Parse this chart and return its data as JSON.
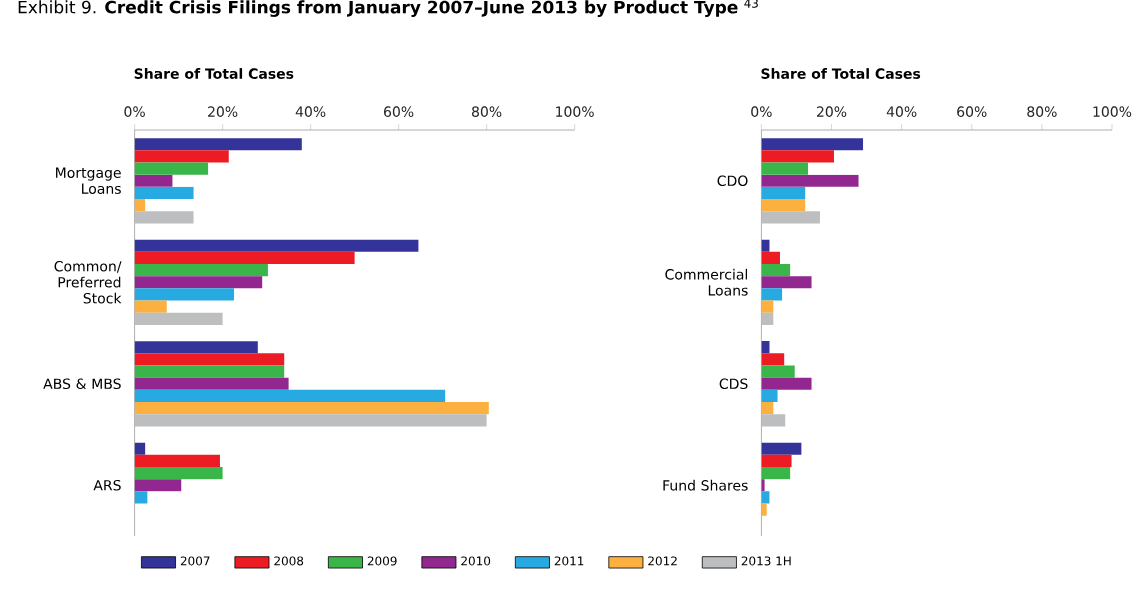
{
  "chart_data": [
    {
      "type": "bar",
      "orientation": "horizontal",
      "title": "Exhibit 9.  **Credit Crisis Filings from January 2007–June 2013 by Product Type** $^{43}$",
      "xlabel": "Share of Total Cases",
      "categories": [
        "Mortgage Loans",
        "Common/ Preferred Stock",
        "ABS & MBS",
        "ARS"
      ],
      "xlim": [
        0,
        100
      ],
      "xticks": [
        {
          "value": 0,
          "label": "0%"
        },
        {
          "value": 20,
          "label": "20%"
        },
        {
          "value": 40,
          "label": "40%"
        },
        {
          "value": 60,
          "label": "60%"
        },
        {
          "value": 80,
          "label": "80%"
        },
        {
          "value": 100,
          "label": "100%"
        }
      ],
      "legend": "bottom",
      "series": [
        {
          "name": "2007",
          "color": "#333399",
          "values": [
            38,
            64.5,
            28,
            2.4
          ]
        },
        {
          "name": "2008",
          "color": "#ed1c24",
          "values": [
            21.4,
            50,
            34,
            19.4
          ]
        },
        {
          "name": "2009",
          "color": "#3ab54a",
          "values": [
            16.7,
            30.3,
            34,
            20
          ]
        },
        {
          "name": "2010",
          "color": "#92278f",
          "values": [
            8.6,
            29,
            35,
            10.6
          ]
        },
        {
          "name": "2011",
          "color": "#27aae1",
          "values": [
            13.4,
            22.6,
            70.6,
            2.9
          ]
        },
        {
          "name": "2012",
          "color": "#fbb040",
          "values": [
            2.4,
            7.3,
            80.5,
            0
          ]
        },
        {
          "name": "2013 1H",
          "color": "#bcbec0",
          "values": [
            13.4,
            20,
            80,
            0
          ]
        }
      ]
    },
    {
      "type": "bar",
      "orientation": "horizontal",
      "xlabel": "Share of Total Cases",
      "categories": [
        "CDO",
        "Commercial Loans",
        "CDS",
        "Fund Shares"
      ],
      "xlim": [
        0,
        100
      ],
      "xticks": [
        {
          "value": 0,
          "label": "0%"
        },
        {
          "value": 20,
          "label": "20%"
        },
        {
          "value": 40,
          "label": "40%"
        },
        {
          "value": 60,
          "label": "60%"
        },
        {
          "value": 80,
          "label": "80%"
        },
        {
          "value": 100,
          "label": "100%"
        }
      ],
      "series": [
        {
          "color": "#333399",
          "values": [
            29,
            2.3,
            2.3,
            11.4
          ]
        },
        {
          "color": "#ed1c24",
          "values": [
            20.7,
            5.3,
            6.5,
            8.6
          ]
        },
        {
          "color": "#3ab54a",
          "values": [
            13.3,
            8.2,
            9.5,
            8.2
          ]
        },
        {
          "color": "#92278f",
          "values": [
            27.7,
            14.3,
            14.3,
            0.9
          ]
        },
        {
          "color": "#27aae1",
          "values": [
            12.5,
            5.9,
            4.6,
            2.3
          ]
        },
        {
          "color": "#fbb040",
          "values": [
            12.5,
            3.4,
            3.4,
            1.5
          ]
        },
        {
          "color": "#bcbec0",
          "values": [
            16.7,
            3.4,
            6.8,
            0
          ]
        }
      ]
    }
  ]
}
